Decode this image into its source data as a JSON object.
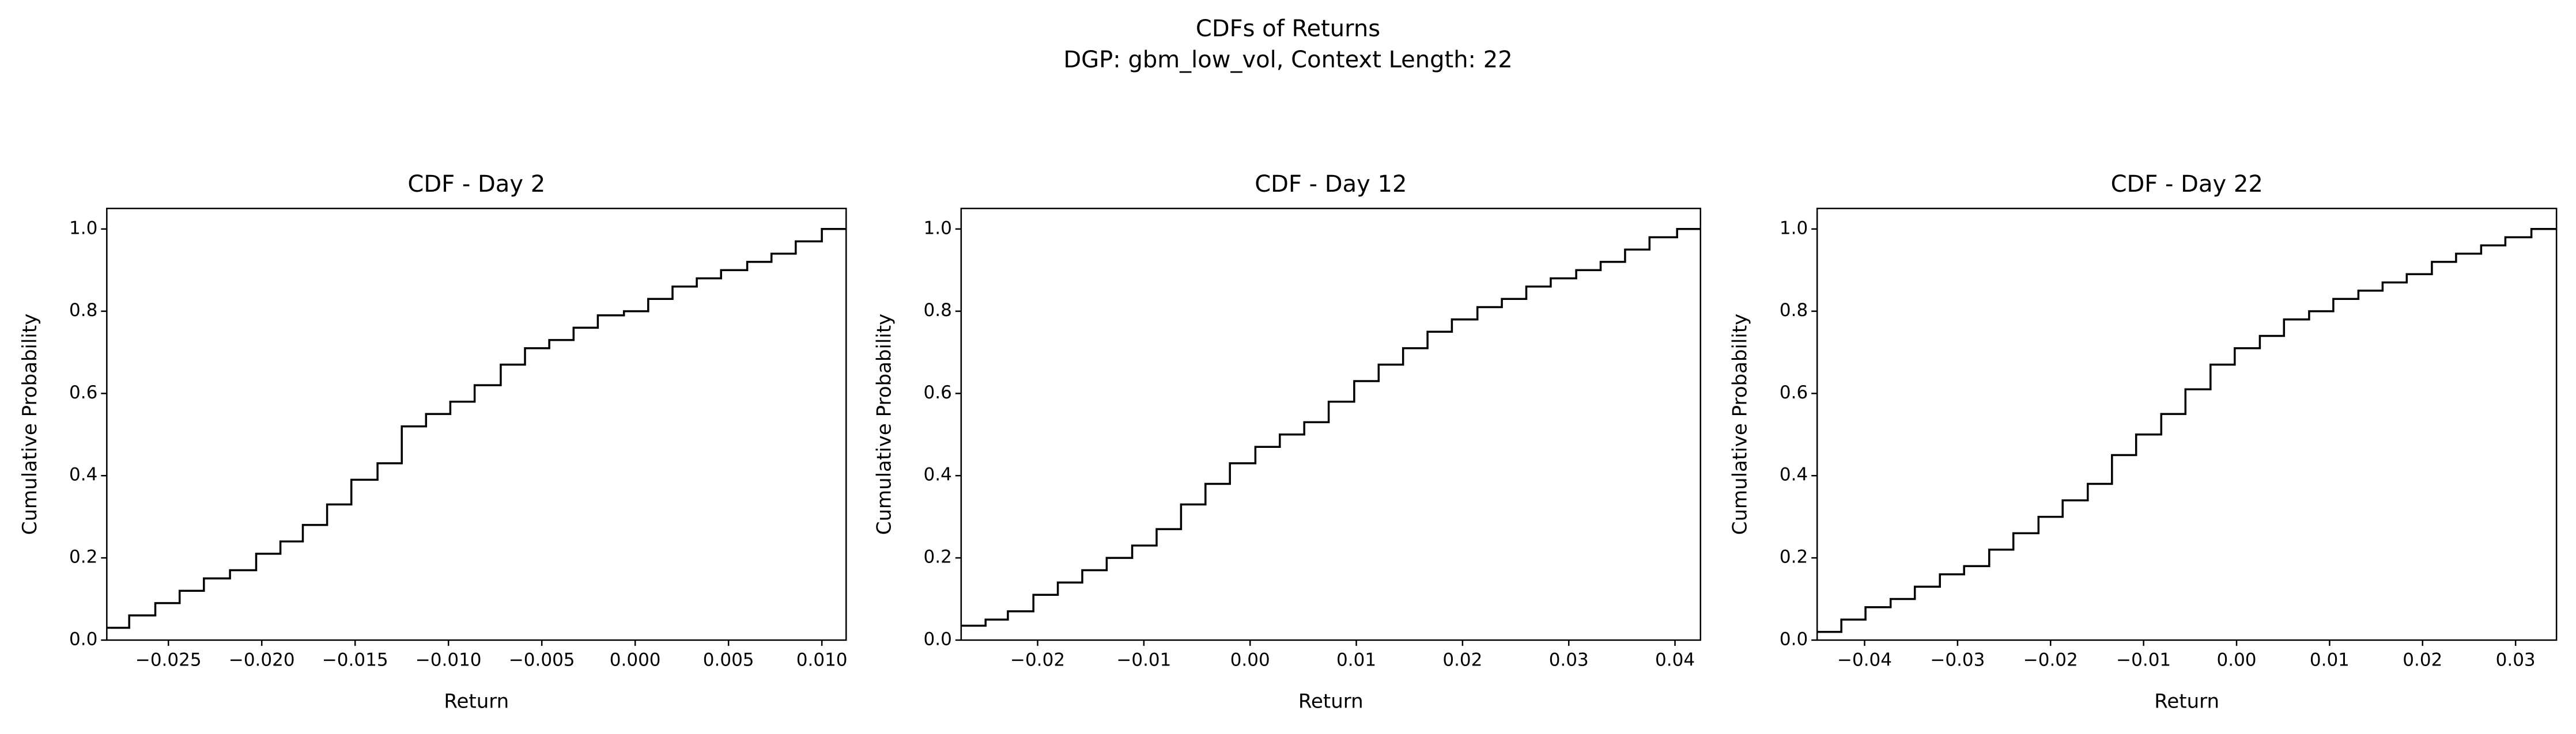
{
  "title": "CDFs of Returns",
  "subtitle": "DGP: gbm_low_vol, Context Length: 22",
  "chart_data": [
    {
      "type": "step",
      "title": "CDF - Day 2",
      "xlabel": "Return",
      "ylabel": "Cumulative Probability",
      "color": "#000000",
      "x": [
        -0.0283,
        -0.0271,
        -0.0257,
        -0.0244,
        -0.0231,
        -0.0217,
        -0.0203,
        -0.019,
        -0.0178,
        -0.0165,
        -0.0152,
        -0.0138,
        -0.0125,
        -0.0112,
        -0.0099,
        -0.0086,
        -0.0072,
        -0.0059,
        -0.0046,
        -0.0033,
        -0.002,
        -0.0006,
        0.0007,
        0.002,
        0.0033,
        0.0046,
        0.006,
        0.0073,
        0.0086,
        0.01
      ],
      "values": [
        0.03,
        0.06,
        0.09,
        0.12,
        0.15,
        0.17,
        0.21,
        0.24,
        0.28,
        0.33,
        0.39,
        0.43,
        0.52,
        0.55,
        0.58,
        0.62,
        0.67,
        0.71,
        0.73,
        0.76,
        0.79,
        0.8,
        0.83,
        0.86,
        0.88,
        0.9,
        0.92,
        0.94,
        0.97,
        1.0
      ],
      "xlim": [
        -0.0283,
        0.0113
      ],
      "ylim": [
        0,
        1.05
      ],
      "xticks": [
        {
          "value": -0.025,
          "label": "−0.025"
        },
        {
          "value": -0.02,
          "label": "−0.020"
        },
        {
          "value": -0.015,
          "label": "−0.015"
        },
        {
          "value": -0.01,
          "label": "−0.010"
        },
        {
          "value": -0.005,
          "label": "−0.005"
        },
        {
          "value": 0,
          "label": "0.000"
        },
        0.005,
        {
          "value": 0.01,
          "label": "0.010"
        }
      ],
      "yticks": [
        {
          "value": 0,
          "label": "0.0"
        },
        0.2,
        0.4,
        0.6,
        0.8,
        {
          "value": 1,
          "label": "1.0"
        }
      ]
    },
    {
      "type": "step",
      "title": "CDF - Day 12",
      "xlabel": "Return",
      "ylabel": "Cumulative Probability",
      "color": "#000000",
      "x": [
        -0.0272,
        -0.0249,
        -0.0228,
        -0.0204,
        -0.0181,
        -0.0158,
        -0.0135,
        -0.0111,
        -0.0088,
        -0.0065,
        -0.0042,
        -0.0019,
        0.0005,
        0.0028,
        0.0051,
        0.0074,
        0.0098,
        0.0121,
        0.0144,
        0.0167,
        0.019,
        0.0214,
        0.0237,
        0.026,
        0.0283,
        0.0307,
        0.033,
        0.0353,
        0.0376,
        0.0402
      ],
      "values": [
        0.035,
        0.05,
        0.07,
        0.11,
        0.14,
        0.17,
        0.2,
        0.23,
        0.27,
        0.33,
        0.38,
        0.43,
        0.47,
        0.5,
        0.53,
        0.58,
        0.63,
        0.67,
        0.71,
        0.75,
        0.78,
        0.81,
        0.83,
        0.86,
        0.88,
        0.9,
        0.92,
        0.95,
        0.98,
        1.0
      ],
      "xlim": [
        -0.0272,
        0.0424
      ],
      "ylim": [
        0,
        1.05
      ],
      "xticks": [
        {
          "value": -0.02,
          "label": "−0.02"
        },
        {
          "value": -0.01,
          "label": "−0.01"
        },
        {
          "value": 0,
          "label": "0.00"
        },
        0.01,
        0.02,
        0.03,
        0.04
      ],
      "yticks": [
        {
          "value": 0,
          "label": "0.0"
        },
        0.2,
        0.4,
        0.6,
        0.8,
        {
          "value": 1,
          "label": "1.0"
        }
      ]
    },
    {
      "type": "step",
      "title": "CDF - Day 22",
      "xlabel": "Return",
      "ylabel": "Cumulative Probability",
      "color": "#000000",
      "x": [
        -0.0451,
        -0.0425,
        -0.0399,
        -0.0372,
        -0.0346,
        -0.0319,
        -0.0293,
        -0.0266,
        -0.024,
        -0.0213,
        -0.0187,
        -0.016,
        -0.0134,
        -0.0108,
        -0.0081,
        -0.0055,
        -0.0028,
        -0.0002,
        0.0025,
        0.0051,
        0.0078,
        0.0104,
        0.0131,
        0.0157,
        0.0183,
        0.021,
        0.0236,
        0.0263,
        0.0289,
        0.0317
      ],
      "values": [
        0.02,
        0.05,
        0.08,
        0.1,
        0.13,
        0.16,
        0.18,
        0.22,
        0.26,
        0.3,
        0.34,
        0.38,
        0.45,
        0.5,
        0.55,
        0.61,
        0.67,
        0.71,
        0.74,
        0.78,
        0.8,
        0.83,
        0.85,
        0.87,
        0.89,
        0.92,
        0.94,
        0.96,
        0.98,
        1.0
      ],
      "xlim": [
        -0.0451,
        0.0344
      ],
      "ylim": [
        0,
        1.05
      ],
      "xticks": [
        {
          "value": -0.04,
          "label": "−0.04"
        },
        {
          "value": -0.03,
          "label": "−0.03"
        },
        {
          "value": -0.02,
          "label": "−0.02"
        },
        {
          "value": -0.01,
          "label": "−0.01"
        },
        {
          "value": 0,
          "label": "0.00"
        },
        0.01,
        0.02,
        0.03
      ],
      "yticks": [
        {
          "value": 0,
          "label": "0.0"
        },
        0.2,
        0.4,
        0.6,
        0.8,
        {
          "value": 1,
          "label": "1.0"
        }
      ]
    }
  ]
}
